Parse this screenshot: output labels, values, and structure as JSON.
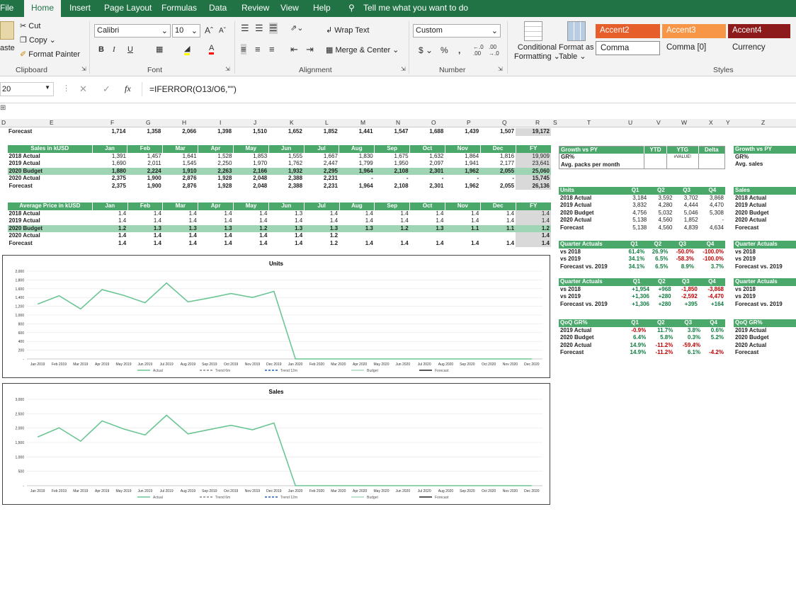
{
  "menu": {
    "file": "File",
    "home": "Home",
    "insert": "Insert",
    "page_layout": "Page Layout",
    "formulas": "Formulas",
    "data": "Data",
    "review": "Review",
    "view": "View",
    "help": "Help",
    "tell_me": "Tell me what you want to do"
  },
  "ribbon": {
    "cut": "Cut",
    "copy": "Copy",
    "format_painter": "Format Painter",
    "paste": "aste",
    "clipboard": "Clipboard",
    "font_name": "Calibri",
    "font_size": "10",
    "bold": "B",
    "italic": "I",
    "underline": "U",
    "font_group": "Font",
    "wrap_text": "Wrap Text",
    "merge_center": "Merge & Center",
    "alignment": "Alignment",
    "number_format": "Custom",
    "currency_sym": "$",
    "percent": "%",
    "comma_sym": ",",
    "number": "Number",
    "conditional_formatting": "Conditional",
    "conditional_formatting2": "Formatting",
    "format_as_table": "Format as",
    "format_as_table2": "Table",
    "styles": {
      "accent2": "Accent2",
      "accent3": "Accent3",
      "accent4": "Accent4",
      "comma": "Comma",
      "comma0": "Comma [0]",
      "currency": "Currency"
    },
    "styles_group": "Styles"
  },
  "formula_bar": {
    "name_box": "20",
    "fx": "fx",
    "formula": "=IFERROR(O13/O6,\"\")"
  },
  "columns": [
    "D",
    "E",
    "F",
    "G",
    "H",
    "I",
    "J",
    "K",
    "L",
    "M",
    "N",
    "O",
    "P",
    "Q",
    "R",
    "S",
    "T",
    "U",
    "V",
    "W",
    "X",
    "Y",
    "Z"
  ],
  "colors": {
    "green_header": "#4aa86b",
    "budget_row": "#9fd5b4",
    "ribbon_green": "#217346",
    "line": "#6cc595"
  },
  "forecast_top": {
    "label": "Forecast",
    "values": [
      "1,714",
      "1,358",
      "2,066",
      "1,398",
      "1,510",
      "1,652",
      "1,852",
      "1,441",
      "1,547",
      "1,688",
      "1,439",
      "1,507",
      "19,172"
    ]
  },
  "months": [
    "Jan",
    "Feb",
    "Mar",
    "Apr",
    "May",
    "Jun",
    "Jul",
    "Aug",
    "Sep",
    "Oct",
    "Nov",
    "Dec",
    "FY"
  ],
  "sales": {
    "title": "Sales in kUSD",
    "rows": [
      {
        "label": "2018 Actual",
        "values": [
          "1,391",
          "1,457",
          "1,641",
          "1,528",
          "1,853",
          "1,555",
          "1,667",
          "1,830",
          "1,675",
          "1,632",
          "1,864",
          "1,816",
          "19,909"
        ]
      },
      {
        "label": "2019 Actual",
        "values": [
          "1,690",
          "2,011",
          "1,545",
          "2,250",
          "1,970",
          "1,762",
          "2,447",
          "1,799",
          "1,950",
          "2,097",
          "1,941",
          "2,177",
          "23,641"
        ]
      },
      {
        "label": "2020 Budget",
        "values": [
          "1,880",
          "2,224",
          "1,910",
          "2,263",
          "2,166",
          "1,932",
          "2,295",
          "1,964",
          "2,108",
          "2,301",
          "1,962",
          "2,055",
          "25,060"
        ]
      },
      {
        "label": "2020 Actual",
        "values": [
          "2,375",
          "1,900",
          "2,876",
          "1,928",
          "2,048",
          "2,388",
          "2,231",
          "-",
          "-",
          "-",
          "-",
          "-",
          "15,745"
        ]
      },
      {
        "label": "Forecast",
        "values": [
          "2,375",
          "1,900",
          "2,876",
          "1,928",
          "2,048",
          "2,388",
          "2,231",
          "1,964",
          "2,108",
          "2,301",
          "1,962",
          "2,055",
          "26,136"
        ]
      }
    ]
  },
  "price": {
    "title": "Average Price in kUSD",
    "rows": [
      {
        "label": "2018 Actual",
        "values": [
          "1.4",
          "1.4",
          "1.4",
          "1.4",
          "1.4",
          "1.3",
          "1.4",
          "1.4",
          "1.4",
          "1.4",
          "1.4",
          "1.4",
          "1.4"
        ]
      },
      {
        "label": "2019 Actual",
        "values": [
          "1.4",
          "1.4",
          "1.4",
          "1.4",
          "1.4",
          "1.4",
          "1.4",
          "1.4",
          "1.4",
          "1.4",
          "1.4",
          "1.4",
          "1.4"
        ]
      },
      {
        "label": "2020 Budget",
        "values": [
          "1.2",
          "1.3",
          "1.3",
          "1.3",
          "1.2",
          "1.3",
          "1.3",
          "1.3",
          "1.2",
          "1.3",
          "1.1",
          "1.1",
          "1.2"
        ]
      },
      {
        "label": "2020 Actual",
        "values": [
          "1.4",
          "1.4",
          "1.4",
          "1.4",
          "1.4",
          "1.4",
          "1.2",
          "",
          "",
          "",
          "",
          "",
          "1.4"
        ]
      },
      {
        "label": "Forecast",
        "values": [
          "1.4",
          "1.4",
          "1.4",
          "1.4",
          "1.4",
          "1.4",
          "1.2",
          "1.4",
          "1.4",
          "1.4",
          "1.4",
          "1.4",
          "1.4"
        ]
      }
    ]
  },
  "growth": {
    "headers": [
      "Growth vs PY",
      "YTD",
      "YTG",
      "Delta"
    ],
    "rows": [
      {
        "label": "GR%",
        "ytd": "",
        "ytg": "#VALUE!",
        "delta": ""
      },
      {
        "label": "Avg. packs per month",
        "ytd": "",
        "ytg": "",
        "delta": ""
      }
    ]
  },
  "growth2": {
    "headers": [
      "Growth vs PY"
    ],
    "rows": [
      "GR%",
      "Avg. sales"
    ]
  },
  "units_q": {
    "headers": [
      "Units",
      "Q1",
      "Q2",
      "Q3",
      "Q4"
    ],
    "rows": [
      {
        "label": "2018 Actual",
        "values": [
          "3,184",
          "3,592",
          "3,702",
          "3,868"
        ]
      },
      {
        "label": "2019 Actual",
        "values": [
          "3,832",
          "4,280",
          "4,444",
          "4,470"
        ]
      },
      {
        "label": "2020 Budget",
        "values": [
          "4,756",
          "5,032",
          "5,046",
          "5,308"
        ]
      },
      {
        "label": "2020 Actual",
        "values": [
          "5,138",
          "4,560",
          "1,852",
          "-"
        ]
      },
      {
        "label": "Forecast",
        "values": [
          "5,138",
          "4,560",
          "4,839",
          "4,634"
        ]
      }
    ]
  },
  "sales_q": {
    "headers": [
      "Sales"
    ],
    "rows": [
      "2018 Actual",
      "2019 Actual",
      "2020 Budget",
      "2020 Actual",
      "Forecast"
    ]
  },
  "qa_pct": {
    "headers": [
      "Quarter Actuals",
      "Q1",
      "Q2",
      "Q3",
      "Q4"
    ],
    "rows": [
      {
        "label": "vs 2018",
        "values": [
          "61.4%",
          "26.9%",
          "-50.0%",
          "-100.0%"
        ]
      },
      {
        "label": "vs 2019",
        "values": [
          "34.1%",
          "6.5%",
          "-58.3%",
          "-100.0%"
        ]
      },
      {
        "label": "Forecast vs. 2019",
        "values": [
          "34.1%",
          "6.5%",
          "8.9%",
          "3.7%"
        ]
      }
    ]
  },
  "qa_pct2": {
    "headers": [
      "Quarter Actuals"
    ],
    "rows": [
      "vs 2018",
      "vs 2019",
      "Forecast vs. 2019"
    ]
  },
  "qa_abs": {
    "headers": [
      "Quarter Actuals",
      "Q1",
      "Q2",
      "Q3",
      "Q4"
    ],
    "rows": [
      {
        "label": "vs 2018",
        "values": [
          "+1,954",
          "+968",
          "-1,850",
          "-3,868"
        ]
      },
      {
        "label": "vs 2019",
        "values": [
          "+1,306",
          "+280",
          "-2,592",
          "-4,470"
        ]
      },
      {
        "label": "Forecast vs. 2019",
        "values": [
          "+1,306",
          "+280",
          "+395",
          "+164"
        ]
      }
    ]
  },
  "qa_abs2": {
    "headers": [
      "Quarter Actuals"
    ],
    "rows": [
      "vs 2018",
      "vs 2019",
      "Forecast vs. 2019"
    ]
  },
  "qoq": {
    "headers": [
      "QoQ GR%",
      "Q1",
      "Q2",
      "Q3",
      "Q4"
    ],
    "rows": [
      {
        "label": "2019 Actual",
        "values": [
          "-0.9%",
          "11.7%",
          "3.8%",
          "0.6%"
        ]
      },
      {
        "label": "2020 Budget",
        "values": [
          "6.4%",
          "5.8%",
          "0.3%",
          "5.2%"
        ]
      },
      {
        "label": "2020 Actual",
        "values": [
          "14.9%",
          "-11.2%",
          "-59.4%",
          ""
        ]
      },
      {
        "label": "Forecast",
        "values": [
          "14.9%",
          "-11.2%",
          "6.1%",
          "-4.2%"
        ]
      }
    ]
  },
  "qoq2": {
    "headers": [
      "QoQ GR%"
    ],
    "rows": [
      "2019 Actual",
      "2020 Budget",
      "2020 Actual",
      "Forecast"
    ]
  },
  "chart_data": [
    {
      "type": "line",
      "title": "Units",
      "categories": [
        "Jan 2019",
        "Feb 2019",
        "Mar 2019",
        "Apr 2019",
        "May 2019",
        "Jun 2019",
        "Jul 2019",
        "Aug 2019",
        "Sep 2019",
        "Oct 2019",
        "Nov 2019",
        "Dec 2019",
        "Jan 2020",
        "Feb 2020",
        "Mar 2020",
        "Apr 2020",
        "May 2020",
        "Jun 2020",
        "Jul 2020",
        "Aug 2020",
        "Sep 2020",
        "Oct 2020",
        "Nov 2020",
        "Dec 2020"
      ],
      "series": [
        {
          "name": "Actual",
          "values": [
            1250,
            1440,
            1140,
            1580,
            1450,
            1280,
            1730,
            1300,
            1390,
            1490,
            1400,
            1540,
            0,
            0,
            0,
            0,
            0,
            0,
            0,
            0,
            0,
            0,
            0,
            0
          ]
        }
      ],
      "legend": [
        "Actual",
        "Trend 6m",
        "Trend 12m",
        "Budget",
        "Forecast"
      ],
      "yticks": [
        "2,000",
        "1,800",
        "1,600",
        "1,400",
        "1,200",
        "1,000",
        "800",
        "600",
        "400",
        "200",
        "-"
      ],
      "ylim": [
        0,
        2000
      ]
    },
    {
      "type": "line",
      "title": "Sales",
      "categories": [
        "Jan 2019",
        "Feb 2019",
        "Mar 2019",
        "Apr 2019",
        "May 2019",
        "Jun 2019",
        "Jul 2019",
        "Aug 2019",
        "Sep 2019",
        "Oct 2019",
        "Nov 2019",
        "Dec 2019",
        "Jan 2020",
        "Feb 2020",
        "Mar 2020",
        "Apr 2020",
        "May 2020",
        "Jun 2020",
        "Jul 2020",
        "Aug 2020",
        "Sep 2020",
        "Oct 2020",
        "Nov 2020",
        "Dec 2020"
      ],
      "series": [
        {
          "name": "Actual",
          "values": [
            1690,
            2011,
            1545,
            2250,
            1970,
            1762,
            2447,
            1799,
            1950,
            2097,
            1941,
            2177,
            0,
            0,
            0,
            0,
            0,
            0,
            0,
            0,
            0,
            0,
            0,
            0
          ]
        }
      ],
      "legend": [
        "Actual",
        "Trend 6m",
        "Trend 12m",
        "Budget",
        "Forecast"
      ],
      "yticks": [
        "3,000",
        "2,500",
        "2,000",
        "1,500",
        "1,000",
        "500",
        "-"
      ],
      "ylim": [
        0,
        3000
      ]
    }
  ]
}
